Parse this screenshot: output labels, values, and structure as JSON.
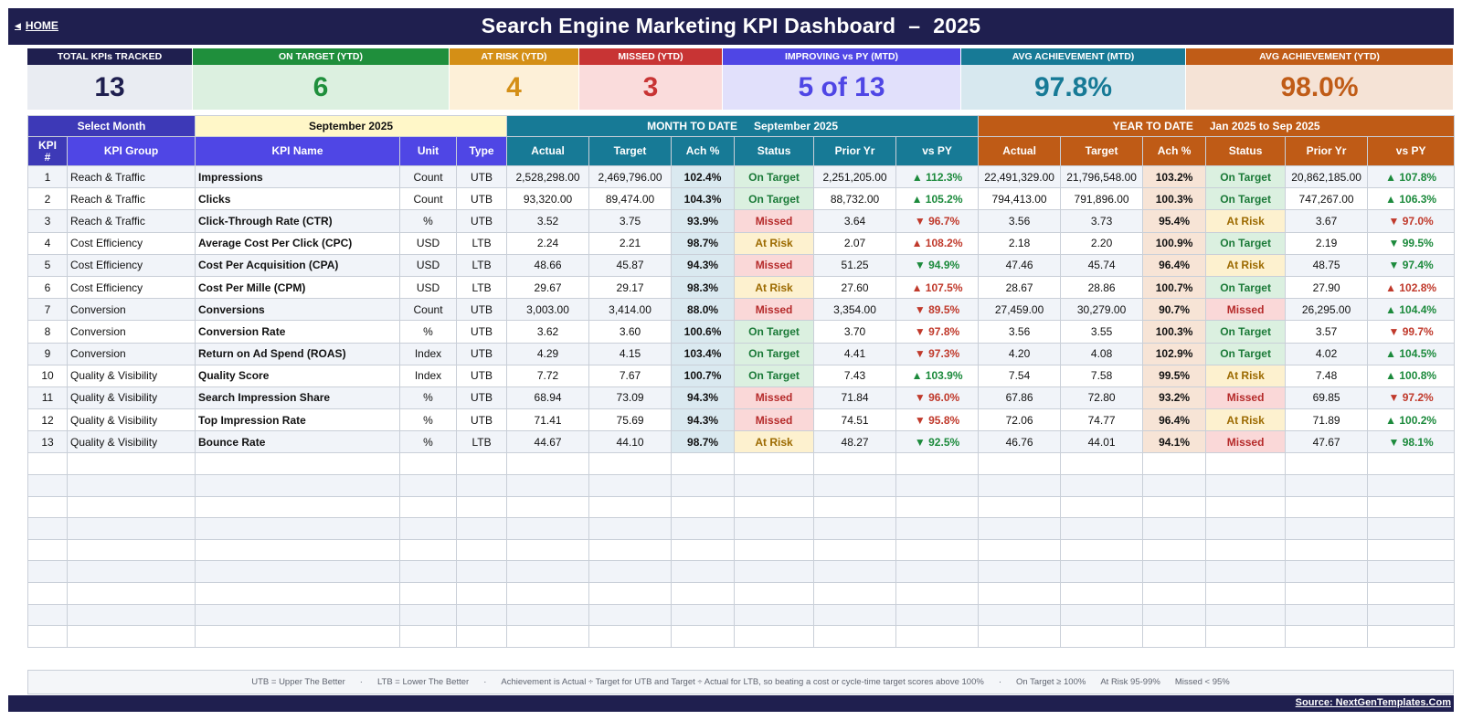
{
  "header": {
    "home_label": "HOME",
    "title": "Search Engine Marketing KPI Dashboard",
    "dash": "–",
    "year": "2025"
  },
  "cards": [
    {
      "label": "TOTAL KPIs TRACKED",
      "value": "13",
      "head_color": "#1f1f4f",
      "bg": "#e9ecf2",
      "fg": "#1f1f4f"
    },
    {
      "label": "ON TARGET (YTD)",
      "value": "6",
      "head_color": "#1f8f3c",
      "bg": "#dcf0e0",
      "fg": "#1f8f3c"
    },
    {
      "label": "AT RISK (YTD)",
      "value": "4",
      "head_color": "#d48f16",
      "bg": "#fdf0d8",
      "fg": "#d48f16"
    },
    {
      "label": "MISSED (YTD)",
      "value": "3",
      "head_color": "#c83434",
      "bg": "#fadcdc",
      "fg": "#c83434"
    },
    {
      "label": "IMPROVING vs PY (MTD)",
      "value": "5 of 13",
      "head_color": "#4f46e5",
      "bg": "#e1e0fb",
      "fg": "#4f46e5"
    },
    {
      "label": "AVG ACHIEVEMENT (MTD)",
      "value": "97.8%",
      "head_color": "#177a96",
      "bg": "#d7e8ef",
      "fg": "#177a96"
    },
    {
      "label": "AVG ACHIEVEMENT (YTD)",
      "value": "98.0%",
      "head_color": "#c05c17",
      "bg": "#f5e3d6",
      "fg": "#c05c17"
    }
  ],
  "selector": {
    "label": "Select Month",
    "month": "September 2025"
  },
  "bands": {
    "mtd_title": "MONTH TO DATE",
    "mtd_period": "September 2025",
    "ytd_title": "YEAR TO DATE",
    "ytd_period": "Jan 2025  to  Sep 2025"
  },
  "columns": {
    "kpi_num_1": "KPI",
    "kpi_num_2": "#",
    "kpi_group": "KPI Group",
    "kpi_name": "KPI Name",
    "unit": "Unit",
    "type": "Type",
    "mtd": [
      "Actual",
      "Target",
      "Ach %",
      "Status",
      "Prior Yr",
      "vs PY"
    ],
    "ytd": [
      "Actual",
      "Target",
      "Ach %",
      "Status",
      "Prior Yr",
      "vs PY"
    ]
  },
  "colors": {
    "id_head": "#3d39b7",
    "group_head": "#4f46e5",
    "mtd_head": "#177a96",
    "ytd_head": "#bf5b16",
    "on_target": "#1b7a38",
    "at_risk": "#9c6a00",
    "missed": "#b52a2a"
  },
  "rows": [
    {
      "n": "1",
      "group": "Reach & Traffic",
      "name": "Impressions",
      "unit": "Count",
      "type": "UTB",
      "m_act": "2,528,298.00",
      "m_tgt": "2,469,796.00",
      "m_ach": "102.4%",
      "m_status": "On Target",
      "m_py": "2,251,205.00",
      "m_vs": "▲ 112.3%",
      "m_dir": "up",
      "y_act": "22,491,329.00",
      "y_tgt": "21,796,548.00",
      "y_ach": "103.2%",
      "y_status": "On Target",
      "y_py": "20,862,185.00",
      "y_vs": "▲ 107.8%",
      "y_dir": "up"
    },
    {
      "n": "2",
      "group": "Reach & Traffic",
      "name": "Clicks",
      "unit": "Count",
      "type": "UTB",
      "m_act": "93,320.00",
      "m_tgt": "89,474.00",
      "m_ach": "104.3%",
      "m_status": "On Target",
      "m_py": "88,732.00",
      "m_vs": "▲ 105.2%",
      "m_dir": "up",
      "y_act": "794,413.00",
      "y_tgt": "791,896.00",
      "y_ach": "100.3%",
      "y_status": "On Target",
      "y_py": "747,267.00",
      "y_vs": "▲ 106.3%",
      "y_dir": "up"
    },
    {
      "n": "3",
      "group": "Reach & Traffic",
      "name": "Click-Through Rate (CTR)",
      "unit": "%",
      "type": "UTB",
      "m_act": "3.52",
      "m_tgt": "3.75",
      "m_ach": "93.9%",
      "m_status": "Missed",
      "m_py": "3.64",
      "m_vs": "▼ 96.7%",
      "m_dir": "down",
      "y_act": "3.56",
      "y_tgt": "3.73",
      "y_ach": "95.4%",
      "y_status": "At Risk",
      "y_py": "3.67",
      "y_vs": "▼ 97.0%",
      "y_dir": "down"
    },
    {
      "n": "4",
      "group": "Cost Efficiency",
      "name": "Average Cost Per Click (CPC)",
      "unit": "USD",
      "type": "LTB",
      "m_act": "2.24",
      "m_tgt": "2.21",
      "m_ach": "98.7%",
      "m_status": "At Risk",
      "m_py": "2.07",
      "m_vs": "▲ 108.2%",
      "m_dir": "down",
      "y_act": "2.18",
      "y_tgt": "2.20",
      "y_ach": "100.9%",
      "y_status": "On Target",
      "y_py": "2.19",
      "y_vs": "▼ 99.5%",
      "y_dir": "up"
    },
    {
      "n": "5",
      "group": "Cost Efficiency",
      "name": "Cost Per Acquisition (CPA)",
      "unit": "USD",
      "type": "LTB",
      "m_act": "48.66",
      "m_tgt": "45.87",
      "m_ach": "94.3%",
      "m_status": "Missed",
      "m_py": "51.25",
      "m_vs": "▼ 94.9%",
      "m_dir": "up",
      "y_act": "47.46",
      "y_tgt": "45.74",
      "y_ach": "96.4%",
      "y_status": "At Risk",
      "y_py": "48.75",
      "y_vs": "▼ 97.4%",
      "y_dir": "up"
    },
    {
      "n": "6",
      "group": "Cost Efficiency",
      "name": "Cost Per Mille (CPM)",
      "unit": "USD",
      "type": "LTB",
      "m_act": "29.67",
      "m_tgt": "29.17",
      "m_ach": "98.3%",
      "m_status": "At Risk",
      "m_py": "27.60",
      "m_vs": "▲ 107.5%",
      "m_dir": "down",
      "y_act": "28.67",
      "y_tgt": "28.86",
      "y_ach": "100.7%",
      "y_status": "On Target",
      "y_py": "27.90",
      "y_vs": "▲ 102.8%",
      "y_dir": "down"
    },
    {
      "n": "7",
      "group": "Conversion",
      "name": "Conversions",
      "unit": "Count",
      "type": "UTB",
      "m_act": "3,003.00",
      "m_tgt": "3,414.00",
      "m_ach": "88.0%",
      "m_status": "Missed",
      "m_py": "3,354.00",
      "m_vs": "▼ 89.5%",
      "m_dir": "down",
      "y_act": "27,459.00",
      "y_tgt": "30,279.00",
      "y_ach": "90.7%",
      "y_status": "Missed",
      "y_py": "26,295.00",
      "y_vs": "▲ 104.4%",
      "y_dir": "up"
    },
    {
      "n": "8",
      "group": "Conversion",
      "name": "Conversion Rate",
      "unit": "%",
      "type": "UTB",
      "m_act": "3.62",
      "m_tgt": "3.60",
      "m_ach": "100.6%",
      "m_status": "On Target",
      "m_py": "3.70",
      "m_vs": "▼ 97.8%",
      "m_dir": "down",
      "y_act": "3.56",
      "y_tgt": "3.55",
      "y_ach": "100.3%",
      "y_status": "On Target",
      "y_py": "3.57",
      "y_vs": "▼ 99.7%",
      "y_dir": "down"
    },
    {
      "n": "9",
      "group": "Conversion",
      "name": "Return on Ad Spend (ROAS)",
      "unit": "Index",
      "type": "UTB",
      "m_act": "4.29",
      "m_tgt": "4.15",
      "m_ach": "103.4%",
      "m_status": "On Target",
      "m_py": "4.41",
      "m_vs": "▼ 97.3%",
      "m_dir": "down",
      "y_act": "4.20",
      "y_tgt": "4.08",
      "y_ach": "102.9%",
      "y_status": "On Target",
      "y_py": "4.02",
      "y_vs": "▲ 104.5%",
      "y_dir": "up"
    },
    {
      "n": "10",
      "group": "Quality & Visibility",
      "name": "Quality Score",
      "unit": "Index",
      "type": "UTB",
      "m_act": "7.72",
      "m_tgt": "7.67",
      "m_ach": "100.7%",
      "m_status": "On Target",
      "m_py": "7.43",
      "m_vs": "▲ 103.9%",
      "m_dir": "up",
      "y_act": "7.54",
      "y_tgt": "7.58",
      "y_ach": "99.5%",
      "y_status": "At Risk",
      "y_py": "7.48",
      "y_vs": "▲ 100.8%",
      "y_dir": "up"
    },
    {
      "n": "11",
      "group": "Quality & Visibility",
      "name": "Search Impression Share",
      "unit": "%",
      "type": "UTB",
      "m_act": "68.94",
      "m_tgt": "73.09",
      "m_ach": "94.3%",
      "m_status": "Missed",
      "m_py": "71.84",
      "m_vs": "▼ 96.0%",
      "m_dir": "down",
      "y_act": "67.86",
      "y_tgt": "72.80",
      "y_ach": "93.2%",
      "y_status": "Missed",
      "y_py": "69.85",
      "y_vs": "▼ 97.2%",
      "y_dir": "down"
    },
    {
      "n": "12",
      "group": "Quality & Visibility",
      "name": "Top Impression Rate",
      "unit": "%",
      "type": "UTB",
      "m_act": "71.41",
      "m_tgt": "75.69",
      "m_ach": "94.3%",
      "m_status": "Missed",
      "m_py": "74.51",
      "m_vs": "▼ 95.8%",
      "m_dir": "down",
      "y_act": "72.06",
      "y_tgt": "74.77",
      "y_ach": "96.4%",
      "y_status": "At Risk",
      "y_py": "71.89",
      "y_vs": "▲ 100.2%",
      "y_dir": "up"
    },
    {
      "n": "13",
      "group": "Quality & Visibility",
      "name": "Bounce Rate",
      "unit": "%",
      "type": "LTB",
      "m_act": "44.67",
      "m_tgt": "44.10",
      "m_ach": "98.7%",
      "m_status": "At Risk",
      "m_py": "48.27",
      "m_vs": "▼ 92.5%",
      "m_dir": "up",
      "y_act": "46.76",
      "y_tgt": "44.01",
      "y_ach": "94.1%",
      "y_status": "Missed",
      "y_py": "47.67",
      "y_vs": "▼ 98.1%",
      "y_dir": "up"
    }
  ],
  "legend": [
    "UTB = Upper The Better",
    "·",
    "LTB = Lower The Better",
    "·",
    "Achievement is Actual ÷ Target for UTB and Target ÷ Actual for LTB, so beating a cost or cycle-time target scores above 100%",
    "·",
    "On Target ≥ 100%",
    "At Risk 95-99%",
    "Missed < 95%"
  ],
  "footer": {
    "source": "Source: NextGenTemplates.Com"
  }
}
